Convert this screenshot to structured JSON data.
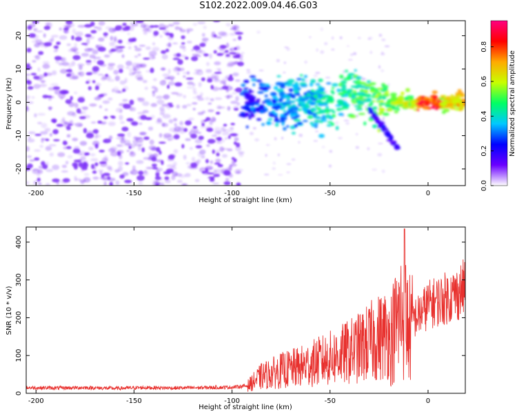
{
  "figure_title": "S102.2022.009.04.46.G03",
  "colors": {
    "snr_line": "#e8312e",
    "spectrogram_scatter": "#7b2ff7",
    "colormap": [
      "#ffffff",
      "#6a00ff",
      "#0000ff",
      "#00c8ff",
      "#00ff64",
      "#c8ff00",
      "#ffaa00",
      "#ff0000",
      "#ff0080"
    ]
  },
  "chart_data": [
    {
      "type": "heatmap",
      "title": "",
      "xlabel": "Height of straight line (km)",
      "ylabel": "Frequency (Hz)",
      "xlim": [
        -205,
        19
      ],
      "ylim": [
        -25,
        24.5
      ],
      "xticks": [
        -200,
        -150,
        -100,
        -50,
        0
      ],
      "yticks": [
        -20,
        -10,
        0,
        10,
        20
      ],
      "grid": false,
      "colorbar": {
        "label": "Normalized spectral amplitude",
        "range": [
          0,
          0.95
        ],
        "ticks": [
          0.0,
          0.2,
          0.4,
          0.6,
          0.8
        ]
      },
      "features": [
        {
          "x_range": [
            -205,
            -95
          ],
          "frequency_range": [
            -25,
            24.5
          ],
          "amplitude": "low (noise)"
        },
        {
          "x_range": [
            -95,
            19
          ],
          "center_frequency": 0,
          "amplitude": "high",
          "peak_near_x": 0
        }
      ]
    },
    {
      "type": "line",
      "title": "",
      "xlabel": "Height of straight line (km)",
      "ylabel": "SNR (10 * v/v)",
      "xlim": [
        -205,
        19
      ],
      "ylim": [
        0,
        440
      ],
      "xticks": [
        -200,
        -150,
        -100,
        -50,
        0
      ],
      "yticks": [
        0,
        100,
        200,
        300,
        400
      ],
      "grid": false,
      "series": [
        {
          "x": [
            -205,
            -190,
            -175,
            -160,
            -145,
            -130,
            -115,
            -100,
            -92,
            -85,
            -75,
            -65,
            -55,
            -45,
            -35,
            -28,
            -20,
            -15,
            -12,
            -10,
            -5,
            0,
            5,
            10,
            15,
            19
          ],
          "values": [
            15,
            14,
            15,
            13,
            15,
            14,
            15,
            16,
            20,
            45,
            60,
            70,
            85,
            100,
            120,
            140,
            160,
            230,
            260,
            200,
            210,
            240,
            250,
            260,
            270,
            290
          ]
        }
      ]
    }
  ]
}
